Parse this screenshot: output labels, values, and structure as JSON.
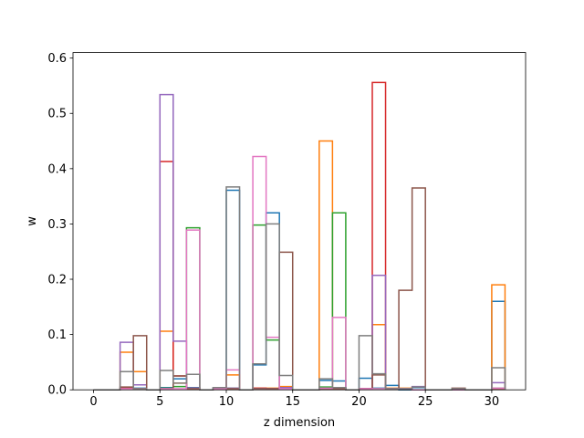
{
  "chart_data": {
    "type": "bar",
    "style": "step histogram (unfilled outlines)",
    "title": "",
    "xlabel": "z dimension",
    "ylabel": "w",
    "xlim": [
      -1.55,
      32.55
    ],
    "ylim": [
      0,
      0.61
    ],
    "xticks": [
      0,
      5,
      10,
      15,
      20,
      25,
      30
    ],
    "yticks": [
      0.0,
      0.1,
      0.2,
      0.3,
      0.4,
      0.5,
      0.6
    ],
    "grid": false,
    "legend": "none",
    "bin_edges": [
      0,
      1,
      2,
      3,
      4,
      5,
      6,
      7,
      8,
      9,
      10,
      11,
      12,
      13,
      14,
      15,
      16,
      17,
      18,
      19,
      20,
      21,
      22,
      23,
      24,
      25,
      26,
      27,
      28,
      29,
      30,
      31
    ],
    "series": [
      {
        "color": "#1f77b4",
        "values": [
          0,
          0,
          0.003,
          0.003,
          0,
          0.004,
          0.02,
          0.004,
          0,
          0.003,
          0.361,
          0,
          0.045,
          0.32,
          0.002,
          0,
          0,
          0.017,
          0.016,
          0,
          0.021,
          0.003,
          0.008,
          0,
          0.004,
          0,
          0,
          0,
          0,
          0,
          0.16
        ]
      },
      {
        "color": "#ff7f0e",
        "values": [
          0,
          0,
          0.068,
          0.033,
          0,
          0.106,
          0.012,
          0.003,
          0,
          0.002,
          0.027,
          0,
          0.003,
          0.003,
          0.006,
          0,
          0,
          0.45,
          0.002,
          0,
          0.002,
          0.118,
          0.003,
          0.003,
          0,
          0,
          0,
          0,
          0,
          0,
          0.19
        ]
      },
      {
        "color": "#2ca02c",
        "values": [
          0,
          0,
          0.003,
          0.002,
          0,
          0.003,
          0.006,
          0.293,
          0,
          0.002,
          0.003,
          0,
          0.298,
          0.09,
          0.003,
          0,
          0,
          0.005,
          0.32,
          0,
          0.002,
          0.002,
          0.002,
          0.002,
          0,
          0,
          0,
          0,
          0,
          0,
          0.003
        ]
      },
      {
        "color": "#d62728",
        "values": [
          0,
          0,
          0.003,
          0.002,
          0,
          0.413,
          0.025,
          0.002,
          0,
          0.002,
          0.002,
          0,
          0.003,
          0.002,
          0.003,
          0,
          0,
          0.002,
          0.002,
          0,
          0.002,
          0.556,
          0.002,
          0.002,
          0,
          0,
          0,
          0,
          0,
          0,
          0.002
        ]
      },
      {
        "color": "#9467bd",
        "values": [
          0,
          0,
          0.086,
          0.009,
          0,
          0.534,
          0.088,
          0.003,
          0,
          0.002,
          0.003,
          0,
          0.002,
          0.002,
          0.004,
          0,
          0,
          0.002,
          0.002,
          0,
          0.002,
          0.207,
          0.002,
          0.002,
          0.006,
          0,
          0,
          0,
          0,
          0,
          0.013
        ]
      },
      {
        "color": "#8c564b",
        "values": [
          0,
          0,
          0.005,
          0.098,
          0,
          0.002,
          0.025,
          0.002,
          0,
          0.002,
          0.002,
          0,
          0.002,
          0.002,
          0.249,
          0,
          0,
          0.002,
          0.002,
          0,
          0.002,
          0.027,
          0.002,
          0.18,
          0.365,
          0,
          0,
          0.003,
          0,
          0,
          0.002
        ]
      },
      {
        "color": "#e377c2",
        "values": [
          0,
          0,
          0.002,
          0.002,
          0,
          0.002,
          0.002,
          0.289,
          0,
          0.002,
          0.036,
          0,
          0.422,
          0.095,
          0.002,
          0,
          0,
          0.003,
          0.131,
          0,
          0.002,
          0.002,
          0.002,
          0.002,
          0,
          0,
          0,
          0,
          0,
          0,
          0.003
        ]
      },
      {
        "color": "#7f7f7f",
        "values": [
          0,
          0,
          0.033,
          0.002,
          0,
          0.035,
          0.012,
          0.028,
          0,
          0.004,
          0.367,
          0,
          0.047,
          0.3,
          0.026,
          0,
          0,
          0.02,
          0.004,
          0,
          0.098,
          0.029,
          0.002,
          0.002,
          0.005,
          0,
          0,
          0.002,
          0,
          0,
          0.04
        ]
      }
    ]
  }
}
